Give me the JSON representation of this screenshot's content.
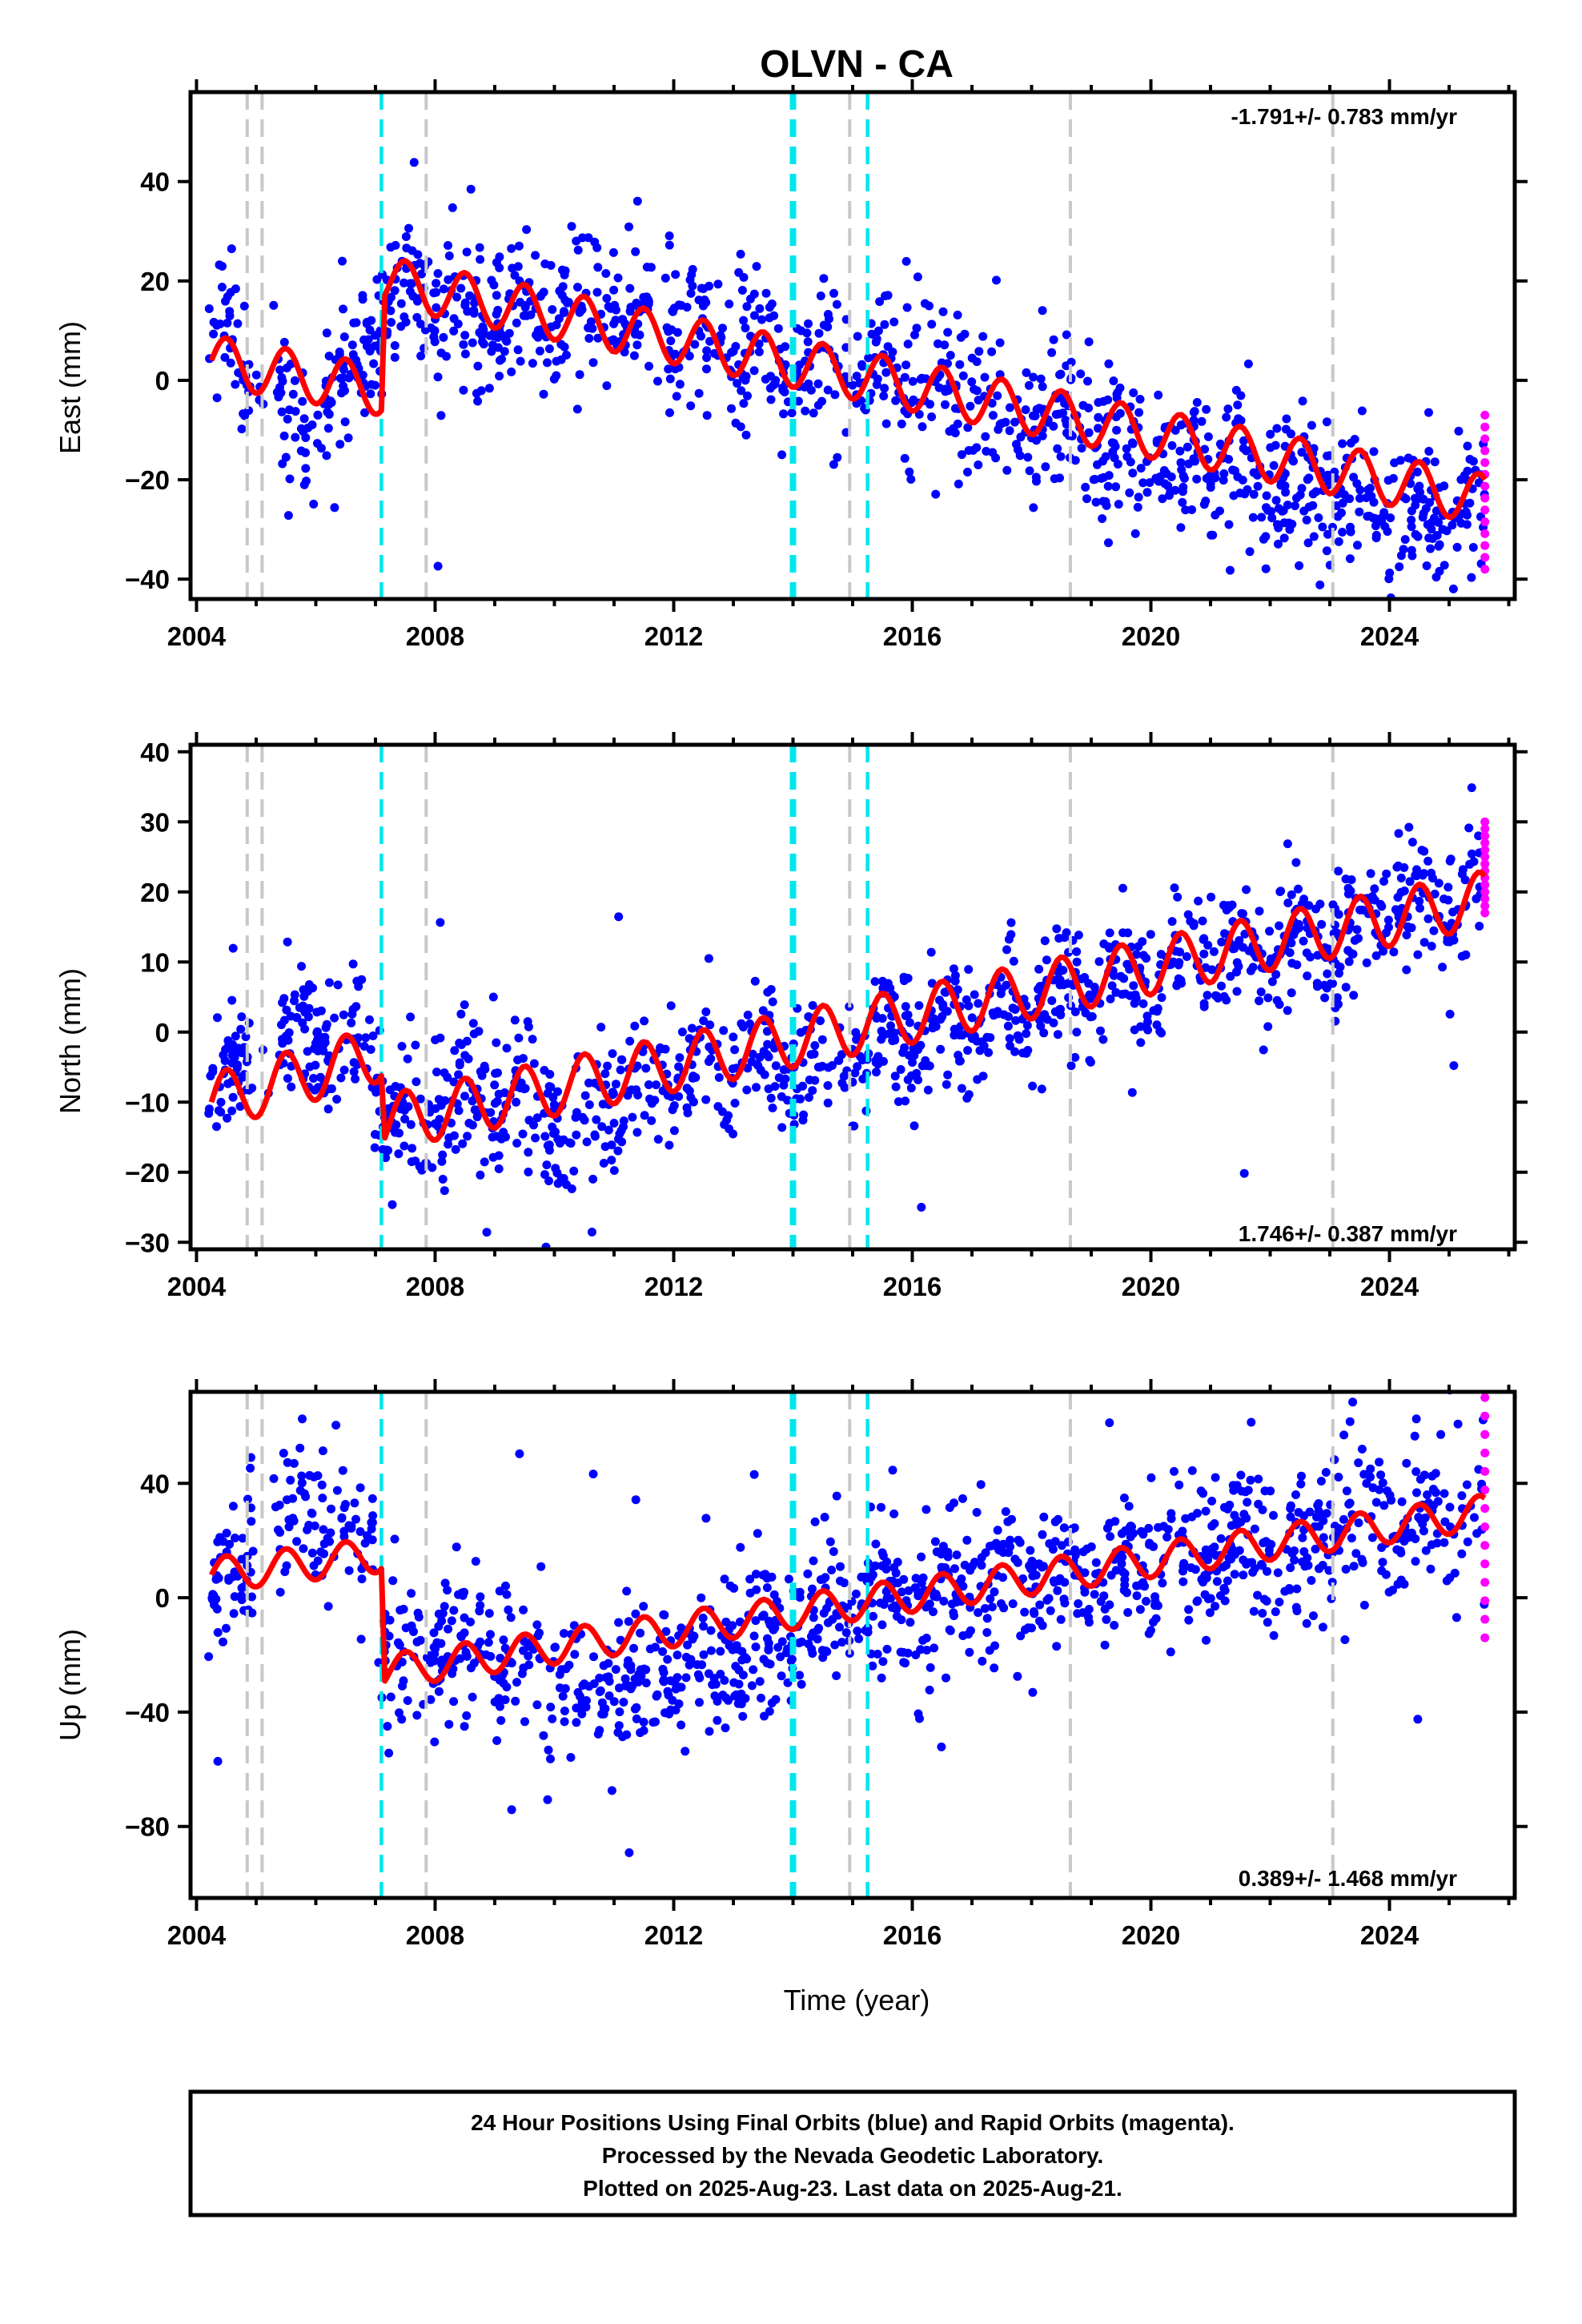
{
  "title": "OLVN - CA",
  "xlabel": "Time (year)",
  "footer": {
    "line1": "24 Hour Positions Using Final Orbits (blue) and Rapid Orbits (magenta).",
    "line2": "Processed by the Nevada Geodetic Laboratory.",
    "line3": "Plotted on 2025-Aug-23. Last data on 2025-Aug-21."
  },
  "colors": {
    "final_orbits": "#0000ff",
    "rapid_orbits": "#ff00ff",
    "model": "#ff0000",
    "equipment_change": "#c8c8c8",
    "earthquake": "#00e5ee"
  },
  "chart_data": [
    {
      "type": "scatter",
      "panel": "east",
      "ylabel": "East (mm)",
      "rate_text": "-1.791+/- 0.783 mm/yr",
      "rate_position": "top-right",
      "xlim": [
        2003.9,
        2026.1
      ],
      "ylim": [
        -44,
        58
      ],
      "xticks": [
        2004,
        2008,
        2012,
        2016,
        2020,
        2024
      ],
      "yticks": [
        -40,
        -20,
        0,
        20,
        40
      ],
      "trend": {
        "segments": [
          {
            "x": [
              2004.25,
              2007.1
            ],
            "y": [
              4,
              -2
            ]
          },
          {
            "x": [
              2007.1,
              2025.6
            ],
            "y": [
              20,
              -24
            ]
          }
        ],
        "annual_amplitude": 5
      },
      "scatter": 7,
      "cloud": [
        {
          "x": 2004.2,
          "y": 10
        },
        {
          "x": 2004.6,
          "y": 8
        },
        {
          "x": 2004.9,
          "y": 0
        },
        {
          "x": 2005.5,
          "y": -5
        },
        {
          "x": 2005.9,
          "y": -9
        },
        {
          "x": 2006.4,
          "y": -2
        },
        {
          "x": 2006.8,
          "y": 5
        },
        {
          "x": 2007.2,
          "y": 17
        },
        {
          "x": 2008,
          "y": 15
        },
        {
          "x": 2009,
          "y": 13
        },
        {
          "x": 2010,
          "y": 14
        },
        {
          "x": 2010.8,
          "y": 15
        },
        {
          "x": 2012,
          "y": 10
        },
        {
          "x": 2013,
          "y": 8
        },
        {
          "x": 2014,
          "y": 3
        },
        {
          "x": 2015,
          "y": 2
        },
        {
          "x": 2016,
          "y": -1
        },
        {
          "x": 2017,
          "y": -3
        },
        {
          "x": 2018,
          "y": -6
        },
        {
          "x": 2019,
          "y": -12
        },
        {
          "x": 2020,
          "y": -15
        },
        {
          "x": 2021,
          "y": -18
        },
        {
          "x": 2022,
          "y": -21
        },
        {
          "x": 2023,
          "y": -24
        },
        {
          "x": 2024,
          "y": -26
        },
        {
          "x": 2025.6,
          "y": -26
        }
      ],
      "rapid_orbits": {
        "x": 2025.6,
        "y_range": [
          -38,
          -7
        ]
      },
      "equipment_changes": [
        2004.85,
        2005.1,
        2007.85,
        2014.95,
        2018.65,
        2023.05
      ],
      "earthquakes": [
        2007.1,
        2014.0,
        2015.25
      ]
    },
    {
      "type": "scatter",
      "panel": "north",
      "ylabel": "North (mm)",
      "rate_text": "1.746+/- 0.387 mm/yr",
      "rate_position": "bottom-right",
      "xlim": [
        2003.9,
        2026.1
      ],
      "ylim": [
        -31,
        41
      ],
      "xticks": [
        2004,
        2008,
        2012,
        2016,
        2020,
        2024
      ],
      "yticks": [
        -30,
        -20,
        -10,
        0,
        10,
        20,
        30,
        40
      ],
      "trend": {
        "segments": [
          {
            "x": [
              2004.25,
              2007.1
            ],
            "y": [
              -10,
              -3
            ]
          },
          {
            "x": [
              2007.1,
              2025.6
            ],
            "y": [
              -13,
              19
            ]
          }
        ],
        "annual_amplitude": 4
      },
      "scatter": 4.5,
      "cloud": [
        {
          "x": 2004.2,
          "y": -10
        },
        {
          "x": 2004.6,
          "y": -6
        },
        {
          "x": 2005.8,
          "y": 2
        },
        {
          "x": 2006.4,
          "y": -4
        },
        {
          "x": 2006.9,
          "y": 1
        },
        {
          "x": 2007.2,
          "y": -14
        },
        {
          "x": 2008,
          "y": -10
        },
        {
          "x": 2009,
          "y": -9
        },
        {
          "x": 2010,
          "y": -12
        },
        {
          "x": 2010.5,
          "y": -16
        },
        {
          "x": 2011,
          "y": -9
        },
        {
          "x": 2012,
          "y": -7
        },
        {
          "x": 2013,
          "y": -5
        },
        {
          "x": 2014,
          "y": -5
        },
        {
          "x": 2015,
          "y": -4
        },
        {
          "x": 2016,
          "y": 0
        },
        {
          "x": 2017,
          "y": 2
        },
        {
          "x": 2018,
          "y": 4
        },
        {
          "x": 2019,
          "y": 7
        },
        {
          "x": 2020,
          "y": 8
        },
        {
          "x": 2021,
          "y": 10
        },
        {
          "x": 2022,
          "y": 12
        },
        {
          "x": 2023,
          "y": 14
        },
        {
          "x": 2024,
          "y": 17
        },
        {
          "x": 2025.6,
          "y": 19
        }
      ],
      "rapid_orbits": {
        "x": 2025.6,
        "y_range": [
          17,
          30
        ]
      },
      "equipment_changes": [
        2004.85,
        2005.1,
        2007.85,
        2014.95,
        2018.65,
        2023.05
      ],
      "earthquakes": [
        2007.1,
        2014.0,
        2015.25
      ]
    },
    {
      "type": "scatter",
      "panel": "up",
      "ylabel": "Up (mm)",
      "rate_text": "0.389+/- 1.468 mm/yr",
      "rate_position": "bottom-right",
      "xlim": [
        2003.9,
        2026.1
      ],
      "ylim": [
        -105,
        72
      ],
      "xticks": [
        2004,
        2008,
        2012,
        2016,
        2020,
        2024
      ],
      "yticks": [
        -80,
        -40,
        0,
        40
      ],
      "trend": {
        "segments": [
          {
            "x": [
              2004.25,
              2007.1
            ],
            "y": [
              8,
              15
            ]
          },
          {
            "x": [
              2007.1,
              2025.6
            ],
            "y": [
              -26,
              30
            ]
          }
        ],
        "annual_amplitude": 6
      },
      "scatter": 13,
      "cloud": [
        {
          "x": 2004.2,
          "y": 0
        },
        {
          "x": 2004.7,
          "y": 10
        },
        {
          "x": 2005.8,
          "y": 35
        },
        {
          "x": 2006.4,
          "y": 20
        },
        {
          "x": 2006.9,
          "y": 15
        },
        {
          "x": 2007.2,
          "y": -22
        },
        {
          "x": 2008,
          "y": -18
        },
        {
          "x": 2009,
          "y": -20
        },
        {
          "x": 2010,
          "y": -25
        },
        {
          "x": 2010.5,
          "y": -35
        },
        {
          "x": 2011,
          "y": -28
        },
        {
          "x": 2012,
          "y": -24
        },
        {
          "x": 2013,
          "y": -20
        },
        {
          "x": 2014,
          "y": -12
        },
        {
          "x": 2015,
          "y": -4
        },
        {
          "x": 2016,
          "y": 0
        },
        {
          "x": 2017,
          "y": 2
        },
        {
          "x": 2018,
          "y": 5
        },
        {
          "x": 2019,
          "y": 10
        },
        {
          "x": 2020,
          "y": 12
        },
        {
          "x": 2021,
          "y": 14
        },
        {
          "x": 2022,
          "y": 18
        },
        {
          "x": 2023,
          "y": 24
        },
        {
          "x": 2024,
          "y": 32
        },
        {
          "x": 2025.6,
          "y": 30
        }
      ],
      "rapid_orbits": {
        "x": 2025.6,
        "y_range": [
          -14,
          70
        ]
      },
      "equipment_changes": [
        2004.85,
        2005.1,
        2007.85,
        2014.95,
        2018.65,
        2023.05
      ],
      "earthquakes": [
        2007.1,
        2014.0,
        2015.25
      ]
    }
  ]
}
